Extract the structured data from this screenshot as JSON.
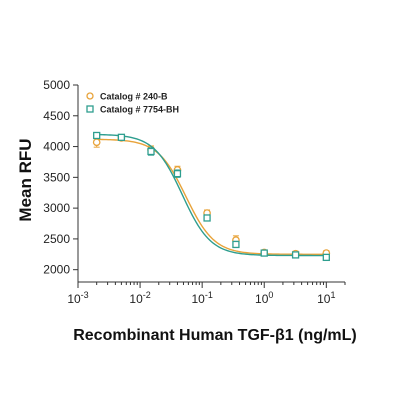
{
  "chart_data": {
    "type": "scatter",
    "title": "",
    "xlabel": "Recombinant Human TGF-β1 (ng/mL)",
    "ylabel": "Mean RFU",
    "x_scale": "log",
    "xlim": [
      0.001,
      20
    ],
    "ylim": [
      1800,
      5000
    ],
    "x_ticks": [
      0.001,
      0.01,
      0.1,
      1,
      10
    ],
    "x_tick_labels": [
      {
        "base": "10",
        "exp": "-3"
      },
      {
        "base": "10",
        "exp": "-2"
      },
      {
        "base": "10",
        "exp": "-1"
      },
      {
        "base": "10",
        "exp": "0"
      },
      {
        "base": "10",
        "exp": "1"
      }
    ],
    "y_ticks": [
      2000,
      2500,
      3000,
      3500,
      4000,
      4500,
      5000
    ],
    "y_tick_labels": [
      "2000",
      "2500",
      "3000",
      "3500",
      "4000",
      "4500",
      "5000"
    ],
    "grid": false,
    "legend_position": "top-left",
    "series": [
      {
        "name": "Catalog # 240-B",
        "marker": "circle",
        "color": "#E8A33A",
        "x": [
          0.002,
          0.005,
          0.015,
          0.04,
          0.12,
          0.35,
          1.0,
          3.2,
          10
        ],
        "y": [
          4070,
          4140,
          3950,
          3620,
          2920,
          2480,
          2280,
          2260,
          2270
        ],
        "err": [
          80,
          40,
          60,
          60,
          50,
          70,
          30,
          40,
          40
        ],
        "fit": {
          "top": 4120,
          "bottom": 2250,
          "ec50": 0.055,
          "hill": 1.9
        }
      },
      {
        "name": "Catalog # 7754-BH",
        "marker": "square",
        "color": "#2E9E8F",
        "x": [
          0.002,
          0.005,
          0.015,
          0.04,
          0.12,
          0.35,
          1.0,
          3.2,
          10
        ],
        "y": [
          4180,
          4150,
          3920,
          3560,
          2840,
          2410,
          2270,
          2240,
          2200
        ],
        "err": [
          30,
          40,
          60,
          60,
          40,
          50,
          30,
          40,
          40
        ],
        "fit": {
          "top": 4200,
          "bottom": 2230,
          "ec50": 0.048,
          "hill": 1.9
        }
      }
    ]
  }
}
